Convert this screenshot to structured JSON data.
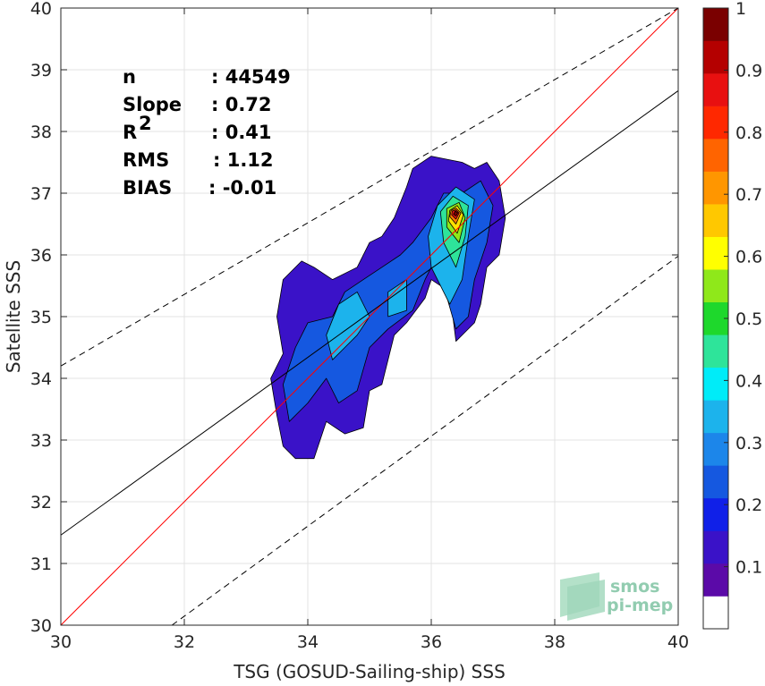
{
  "chart_data": {
    "type": "scatter",
    "subtype": "2d-density-contour",
    "xlabel": "TSG (GOSUD-Sailing-ship) SSS",
    "ylabel": "Satellite SSS",
    "xlim": [
      30,
      40
    ],
    "ylim": [
      30,
      40
    ],
    "xticks": [
      30,
      32,
      34,
      36,
      38,
      40
    ],
    "yticks": [
      30,
      31,
      32,
      33,
      34,
      35,
      36,
      37,
      38,
      39,
      40
    ],
    "grid": true,
    "stats": [
      {
        "label": "n",
        "value": ": 44549"
      },
      {
        "label": "Slope",
        "value": ": 0.72"
      },
      {
        "label": "R",
        "sup": "2",
        "value": ": 0.41"
      },
      {
        "label": "RMS",
        "value": ": 1.12"
      },
      {
        "label": "BIAS",
        "value": ": -0.01"
      }
    ],
    "lines": {
      "identity": {
        "color": "#ff0000",
        "points": [
          [
            30,
            30
          ],
          [
            40,
            40
          ]
        ]
      },
      "regression": {
        "color": "#000000",
        "points": [
          [
            30,
            31.46
          ],
          [
            40,
            38.66
          ]
        ]
      },
      "upper_bound": {
        "color": "#000000",
        "dash": true,
        "points": [
          [
            30,
            34.2
          ],
          [
            40,
            40
          ]
        ]
      },
      "lower_bound": {
        "color": "#000000",
        "dash": true,
        "points": [
          [
            31.8,
            30
          ],
          [
            40,
            35.98
          ]
        ]
      }
    },
    "contours": [
      {
        "level": 0.05,
        "color": "#3a12c8",
        "points": [
          [
            33.6,
            32.9
          ],
          [
            33.8,
            32.7
          ],
          [
            34.1,
            32.7
          ],
          [
            34.3,
            33.3
          ],
          [
            34.6,
            33.1
          ],
          [
            34.9,
            33.2
          ],
          [
            35.0,
            33.8
          ],
          [
            35.2,
            33.9
          ],
          [
            35.4,
            34.7
          ],
          [
            35.6,
            34.9
          ],
          [
            35.9,
            35.3
          ],
          [
            36.0,
            35.6
          ],
          [
            36.3,
            35.4
          ],
          [
            36.4,
            34.6
          ],
          [
            36.7,
            34.9
          ],
          [
            36.8,
            35.2
          ],
          [
            36.9,
            35.8
          ],
          [
            37.1,
            36.0
          ],
          [
            37.2,
            36.6
          ],
          [
            37.1,
            37.2
          ],
          [
            36.9,
            37.5
          ],
          [
            36.7,
            37.4
          ],
          [
            36.5,
            37.5
          ],
          [
            36.0,
            37.6
          ],
          [
            35.7,
            37.4
          ],
          [
            35.6,
            37.1
          ],
          [
            35.4,
            36.6
          ],
          [
            35.2,
            36.3
          ],
          [
            35.0,
            36.2
          ],
          [
            34.8,
            35.8
          ],
          [
            34.4,
            35.6
          ],
          [
            34.1,
            35.8
          ],
          [
            33.9,
            35.9
          ],
          [
            33.6,
            35.6
          ],
          [
            33.5,
            35.0
          ],
          [
            33.6,
            34.4
          ],
          [
            33.4,
            34.0
          ],
          [
            33.5,
            33.4
          ]
        ]
      },
      {
        "level": 0.15,
        "color": "#1558e0",
        "points": [
          [
            33.7,
            33.3
          ],
          [
            34.0,
            33.6
          ],
          [
            34.3,
            34.0
          ],
          [
            34.5,
            33.6
          ],
          [
            34.8,
            33.8
          ],
          [
            35.0,
            34.5
          ],
          [
            35.3,
            34.8
          ],
          [
            35.7,
            35.1
          ],
          [
            35.9,
            35.6
          ],
          [
            36.1,
            36.0
          ],
          [
            36.2,
            35.5
          ],
          [
            36.4,
            34.8
          ],
          [
            36.6,
            35.0
          ],
          [
            36.7,
            35.6
          ],
          [
            36.9,
            36.2
          ],
          [
            37.0,
            36.8
          ],
          [
            36.8,
            37.2
          ],
          [
            36.5,
            37.0
          ],
          [
            36.2,
            37.0
          ],
          [
            36.0,
            36.6
          ],
          [
            35.7,
            36.2
          ],
          [
            35.5,
            36.0
          ],
          [
            35.2,
            35.8
          ],
          [
            34.9,
            35.6
          ],
          [
            34.6,
            35.4
          ],
          [
            34.4,
            35.0
          ],
          [
            34.0,
            34.9
          ],
          [
            33.8,
            34.5
          ],
          [
            33.6,
            33.9
          ]
        ]
      },
      {
        "level": 0.3,
        "color": "#1cb3ec",
        "points": [
          [
            34.4,
            34.3
          ],
          [
            34.6,
            34.5
          ],
          [
            34.8,
            34.7
          ],
          [
            35.0,
            35.0
          ],
          [
            34.8,
            35.4
          ],
          [
            34.5,
            35.2
          ],
          [
            34.3,
            34.7
          ]
        ]
      },
      {
        "level": 0.3,
        "color": "#1cb3ec",
        "points": [
          [
            35.3,
            35.0
          ],
          [
            35.6,
            35.1
          ],
          [
            35.6,
            35.6
          ],
          [
            35.3,
            35.4
          ]
        ]
      },
      {
        "level": 0.3,
        "color": "#1cb3ec",
        "points": [
          [
            36.0,
            35.8
          ],
          [
            36.3,
            35.2
          ],
          [
            36.5,
            35.6
          ],
          [
            36.6,
            36.3
          ],
          [
            36.7,
            36.9
          ],
          [
            36.4,
            37.1
          ],
          [
            36.1,
            36.8
          ],
          [
            35.95,
            36.3
          ]
        ]
      },
      {
        "level": 0.45,
        "color": "#2ee49a",
        "points": [
          [
            36.2,
            36.2
          ],
          [
            36.4,
            35.8
          ],
          [
            36.55,
            36.3
          ],
          [
            36.6,
            36.8
          ],
          [
            36.35,
            36.95
          ],
          [
            36.15,
            36.7
          ]
        ]
      },
      {
        "level": 0.6,
        "color": "#8fe81a",
        "points": [
          [
            36.25,
            36.45
          ],
          [
            36.45,
            36.2
          ],
          [
            36.55,
            36.6
          ],
          [
            36.45,
            36.85
          ],
          [
            36.25,
            36.75
          ]
        ]
      },
      {
        "level": 0.7,
        "color": "#ffe000",
        "points": [
          [
            36.28,
            36.55
          ],
          [
            36.42,
            36.35
          ],
          [
            36.52,
            36.65
          ],
          [
            36.42,
            36.8
          ],
          [
            36.3,
            36.72
          ]
        ]
      },
      {
        "level": 0.8,
        "color": "#ff7a00",
        "points": [
          [
            36.3,
            36.62
          ],
          [
            36.4,
            36.5
          ],
          [
            36.48,
            36.68
          ],
          [
            36.4,
            36.76
          ],
          [
            36.32,
            36.72
          ]
        ]
      },
      {
        "level": 0.9,
        "color": "#e81010",
        "points": [
          [
            36.33,
            36.65
          ],
          [
            36.4,
            36.58
          ],
          [
            36.45,
            36.68
          ],
          [
            36.4,
            36.73
          ],
          [
            36.34,
            36.71
          ]
        ]
      },
      {
        "level": 1.0,
        "color": "#7a0000",
        "points": [
          [
            36.36,
            36.66
          ],
          [
            36.4,
            36.63
          ],
          [
            36.43,
            36.68
          ],
          [
            36.39,
            36.71
          ]
        ]
      }
    ],
    "colorbar": {
      "min": 0,
      "max": 1,
      "ticks": [
        0.1,
        0.2,
        0.3,
        0.4,
        0.5,
        0.6,
        0.7,
        0.8,
        0.9,
        1
      ],
      "tick_labels": [
        "0.1",
        "0.2",
        "0.3",
        "0.4",
        "0.5",
        "0.6",
        "0.7",
        "0.8",
        "0.9",
        "1"
      ],
      "colors": [
        "#ffffff",
        "#5b0aa8",
        "#3a12c8",
        "#1020e8",
        "#1558e0",
        "#1c86ea",
        "#1cb3ec",
        "#00ecf8",
        "#2ee49a",
        "#1ed82c",
        "#8fe81a",
        "#ffff00",
        "#ffc800",
        "#ff9600",
        "#ff6400",
        "#ff2800",
        "#e81010",
        "#b40000",
        "#7a0000"
      ]
    },
    "logo": {
      "line1": "smos",
      "line2": "pi-mep"
    }
  }
}
